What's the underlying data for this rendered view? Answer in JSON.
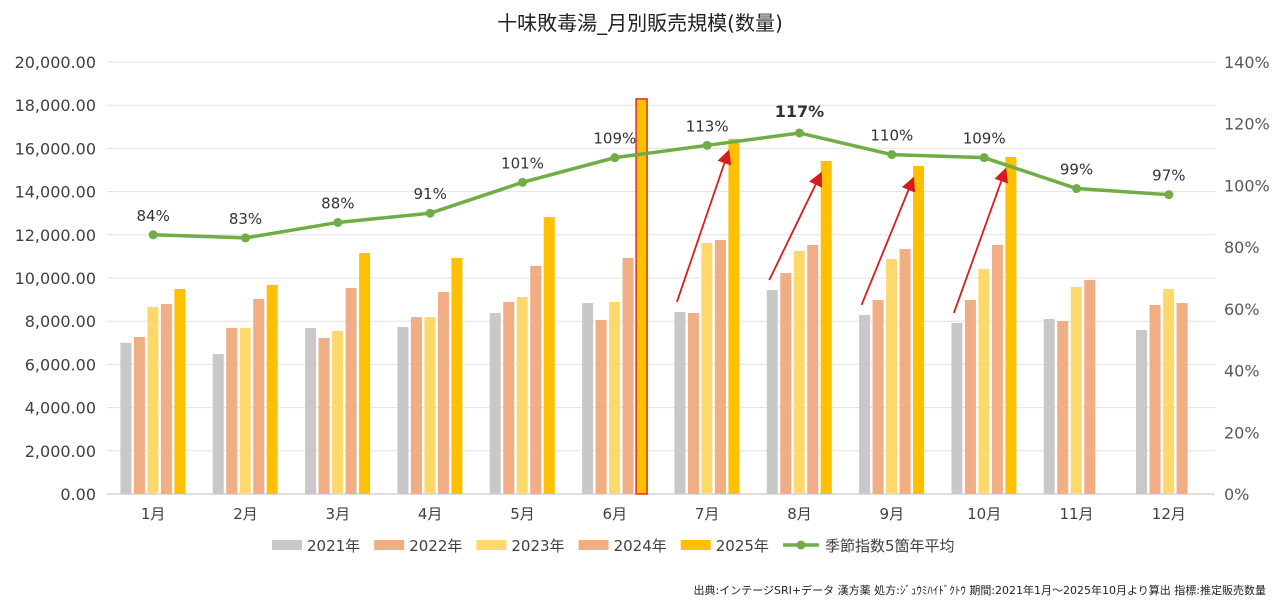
{
  "chart_data": {
    "type": "bar",
    "title": "十味敗毒湯_月別販売規模(数量)",
    "categories": [
      "1月",
      "2月",
      "3月",
      "4月",
      "5月",
      "6月",
      "7月",
      "8月",
      "9月",
      "10月",
      "11月",
      "12月"
    ],
    "ylim": [
      0,
      20000
    ],
    "y_ticks": [
      "0.00",
      "2,000.00",
      "4,000.00",
      "6,000.00",
      "8,000.00",
      "10,000.00",
      "12,000.00",
      "14,000.00",
      "16,000.00",
      "18,000.00",
      "20,000.00"
    ],
    "y2lim": [
      0,
      140
    ],
    "y2_ticks": [
      "0%",
      "20%",
      "40%",
      "60%",
      "80%",
      "100%",
      "120%",
      "140%"
    ],
    "grid": true,
    "legend": "bottom",
    "series": [
      {
        "name": "2021年",
        "type": "bar",
        "color": "#c8c8c8",
        "values": [
          7000,
          6480,
          7690,
          7730,
          8380,
          8840,
          8430,
          9440,
          8290,
          7920,
          8100,
          7590
        ]
      },
      {
        "name": "2022年",
        "type": "bar",
        "color": "#f0ae84",
        "values": [
          7270,
          7690,
          7220,
          8190,
          8890,
          8060,
          8380,
          10230,
          8980,
          8980,
          8010,
          8750
        ]
      },
      {
        "name": "2023年",
        "type": "bar",
        "color": "#fdd86a",
        "values": [
          8660,
          7690,
          7550,
          8190,
          9120,
          8890,
          11620,
          11250,
          10880,
          10420,
          9580,
          9490
        ]
      },
      {
        "name": "2024年",
        "type": "bar",
        "color": "#f1ae84",
        "values": [
          8800,
          9030,
          9540,
          9350,
          10560,
          10930,
          11760,
          11530,
          11340,
          11530,
          9910,
          8840
        ]
      },
      {
        "name": "2025年",
        "type": "bar",
        "color": "#ffc000",
        "values": [
          9490,
          9680,
          11160,
          10930,
          12820,
          18290,
          16440,
          15420,
          15190,
          15600,
          null,
          null
        ]
      },
      {
        "name": "季節指数5箇年平均",
        "type": "line",
        "axis": "right",
        "color": "#70ad47",
        "values": [
          84,
          83,
          88,
          91,
          101,
          109,
          113,
          117,
          110,
          109,
          99,
          97
        ],
        "labels": [
          "84%",
          "83%",
          "88%",
          "91%",
          "101%",
          "109%",
          "113%",
          "117%",
          "110%",
          "109%",
          "99%",
          "97%"
        ]
      }
    ],
    "highlight": {
      "category": "6月",
      "series": "2025年",
      "border_color": "#e03020"
    },
    "annotations": {
      "arrow_color": "#d81c1c",
      "arrow_months": [
        "7月",
        "8月",
        "9月",
        "10月"
      ],
      "bold_label": "117%"
    }
  },
  "footer": {
    "source": "出典:インテージSRI+データ  漢方薬  処方:ｼﾞｭｳﾐﾊｲﾄﾞｸﾄｳ  期間:2021年1月～2025年10月より算出  指標:推定販売数量"
  }
}
